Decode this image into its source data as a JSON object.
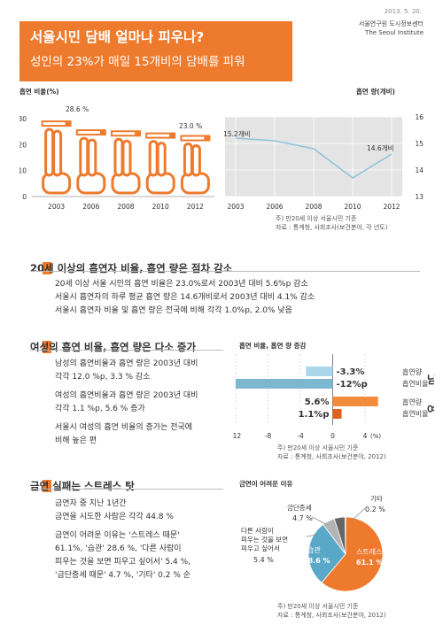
{
  "header": {
    "title": "서울시민 담배 얼마나 피우나?",
    "subtitle": "성인의 23%가 매일 15개비의 담배를 피워",
    "date": "2013. 5. 20.",
    "institute_kr": "서울연구원 도시정보센터",
    "institute_en": "The Seoul Institute"
  },
  "chart_data": [
    {
      "type": "bar",
      "title": "흡연 비율(%)",
      "categories": [
        "2003",
        "2006",
        "2008",
        "2010",
        "2012"
      ],
      "values": [
        28.6,
        25.2,
        24.8,
        24.0,
        23.0
      ],
      "data_labels": [
        "28.6 %",
        "",
        "",
        "",
        "23.0 %"
      ],
      "ylim": [
        0,
        30
      ],
      "yticks": [
        0,
        10,
        20,
        30
      ],
      "colors": {
        "bar": "#ee7a2d"
      }
    },
    {
      "type": "line",
      "title": "흡연 량(개비)",
      "x": [
        "2003",
        "2006",
        "2008",
        "2010",
        "2012"
      ],
      "values": [
        15.2,
        15.1,
        14.8,
        13.7,
        14.6
      ],
      "data_labels": [
        "15.2개비",
        "",
        "",
        "",
        "14.6개비"
      ],
      "ylim": [
        13,
        16
      ],
      "yticks": [
        13,
        14,
        15,
        16
      ],
      "grid": true,
      "colors": {
        "line": "#8fc4dc",
        "background": "#e4e4e4"
      }
    },
    {
      "type": "bar",
      "title": "흡연 비율, 흡연 량 증감",
      "orientation": "horizontal",
      "groups": [
        "남",
        "여"
      ],
      "categories": [
        "흡연량",
        "흡연비율",
        "흡연량",
        "흡연비율"
      ],
      "values": [
        -3.3,
        -12,
        5.6,
        1.1
      ],
      "data_labels": [
        "-3.3%",
        "-12%p",
        "5.6%",
        "1.1%p"
      ],
      "xlim": [
        -12,
        4
      ],
      "xticks": [
        -12,
        -8,
        -4,
        0,
        4
      ],
      "xlabel": "(%)",
      "colors": {
        "male_amount": "#a9d6ea",
        "male_rate": "#7cb9d1",
        "female_amount": "#f28c3c",
        "female_rate": "#e0601f"
      }
    },
    {
      "type": "pie",
      "title": "금연이 어려운 이유",
      "labels": [
        "스트레스",
        "습관",
        "다른 사람이 피우는 것을 보면 피우고 싶어서",
        "금단증세",
        "기타"
      ],
      "values": [
        61.1,
        28.6,
        5.4,
        4.7,
        0.2
      ],
      "data_labels": [
        "61.1 %",
        "28.6 %",
        "5.4 %",
        "4.7 %",
        "0.2 %"
      ],
      "colors": [
        "#ee7a2d",
        "#5aa8c8",
        "#b3b3b3",
        "#666666",
        "#333333"
      ]
    }
  ],
  "chart1": {
    "title": "흡연 비율(%)",
    "label_first": "28.6 %",
    "label_last": "23.0 %"
  },
  "chart2": {
    "title": "흡연 량(개비)",
    "label_first": "15.2개비",
    "label_last": "14.6개비"
  },
  "notes": {
    "source1_a": "주) 만20세 이상 서울시민 기준",
    "source1_b": "자료 : 통계청, 사회조사(보건분야, 각 년도)",
    "source2_a": "주) 만20세 이상 서울시민 기준",
    "source2_b": "자료 : 통계청, 사회조사(보건분야, 2012)",
    "source3_a": "주) 만20세 이상 서울시민 기준",
    "source3_b": "자료 : 통계청, 사회조사(보건분야, 2012)"
  },
  "section1": {
    "heading": "20세 이상의 흡연자 비율, 흡연 량은 점차 감소",
    "lines": [
      "20세 이상 서울 시민의 흡연 비율은 23.0%로서 2003년 대비 5.6%p 감소",
      "서울시 흡연자의 하루 평균 흡연 량은 14.6개비로서 2003년 대비 4.1% 감소",
      "서울시 흡연자 비율 및 흡연 량은 전국에 비해 각각 1.0%p, 2.0% 낮음"
    ]
  },
  "section2": {
    "heading": "여성의 흡연 비율, 흡연 량은 다소 증가",
    "lines": [
      "남성의 흡연비율과 흡연 량은 2003년 대비",
      "각각 12.0 %p, 3.3 % 감소",
      "여성의 흡연비율과 흡연 량은 2003년 대비",
      "각각 1.1 %p, 5.6 % 증가",
      "서울시 여성의 흡연 비율의 증가는 전국에",
      "비해 높은 편"
    ],
    "chart_title": "흡연 비율, 흡연 량 증감",
    "male": "남",
    "female": "여",
    "cat_amount": "흡연량",
    "cat_rate": "흡연비율",
    "unit": "(%)"
  },
  "section3": {
    "heading": "금연 실패는 스트레스 탓",
    "lines": [
      "금연자 중 지난 1년간",
      "금연을 시도한 사람은 각각 44.8 %",
      "금연이 어려운 이유는 '스트레스 때문'",
      "61.1%, '습관' 28.6 %, '다른 사람이",
      "피우는 것을 보면 피우고 싶어서' 5.4 %,",
      "'금단증세 때문' 4.7 %, '기타' 0.2 % 순"
    ],
    "chart_title": "금연이 어려운 이유",
    "pie_labels": {
      "stress": "스트레스",
      "stress_val": "61.1 %",
      "habit": "습관",
      "habit_val": "28.6 %",
      "others_1": "다른 사람이",
      "others_2": "피우는 것을 보면",
      "others_3": "피우고 싶어서",
      "others_val": "5.4 %",
      "withdraw": "금단증세",
      "withdraw_val": "4.7 %",
      "etc": "기타",
      "etc_val": "0.2 %"
    }
  }
}
